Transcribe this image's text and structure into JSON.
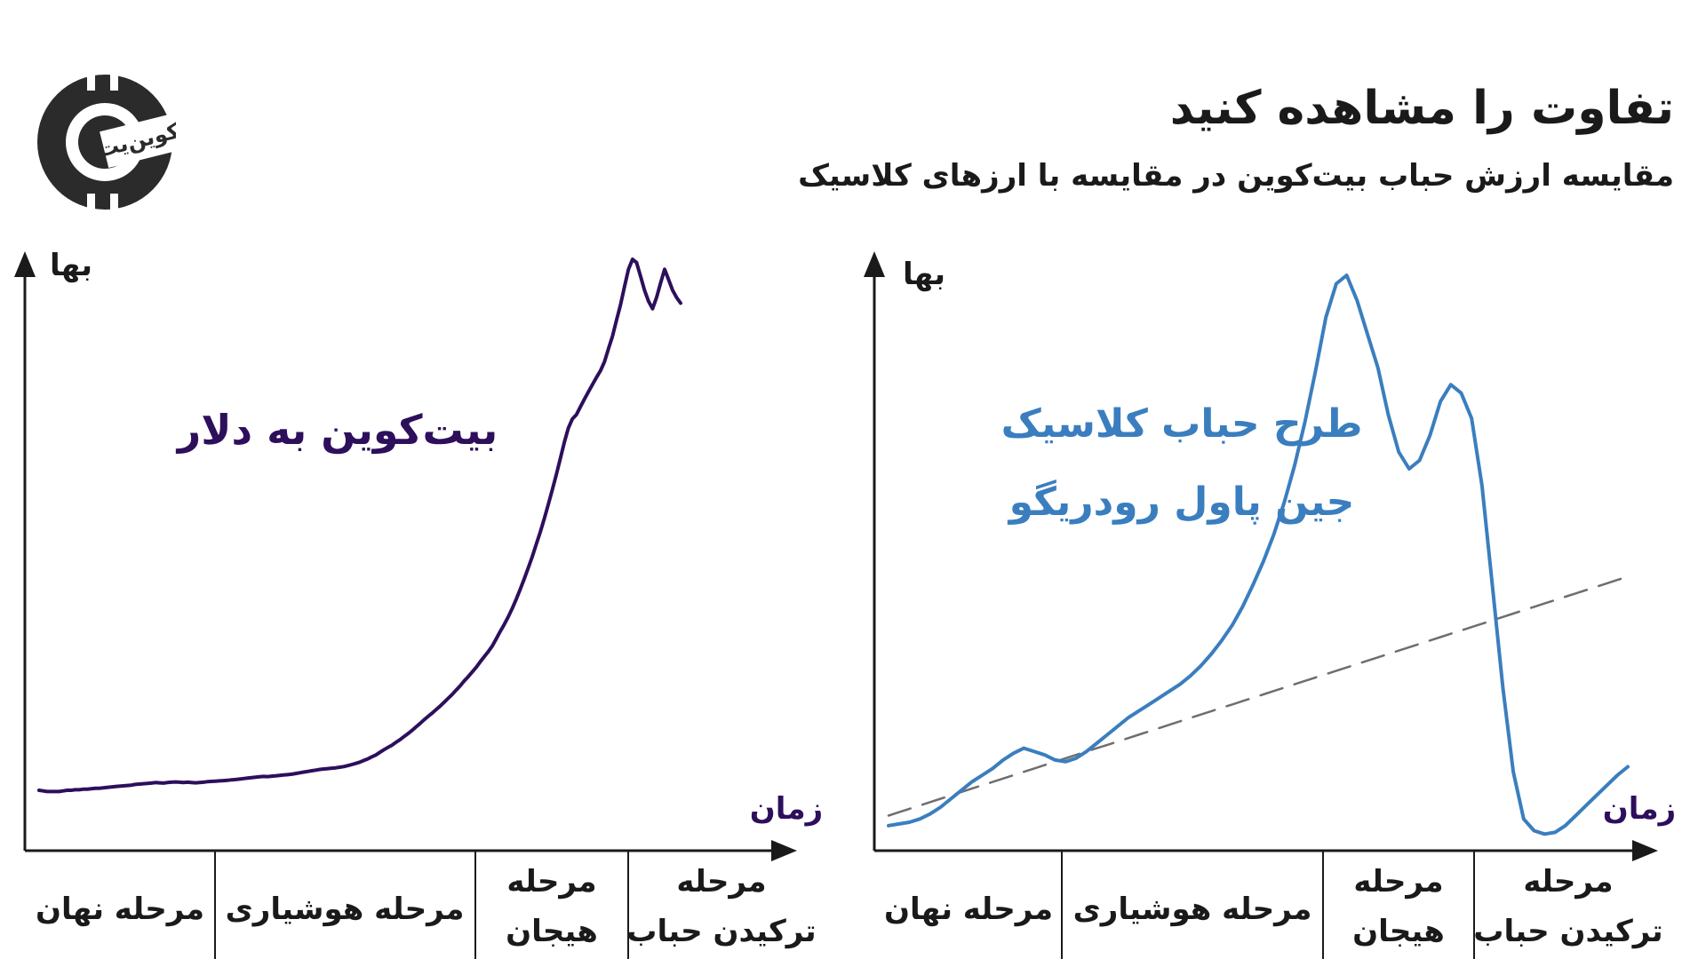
{
  "header": {
    "title": "تفاوت را مشاهده کنید",
    "subtitle": "مقایسه ارزش حباب بیت‌کوین در مقایسه با ارزهای کلاسیک"
  },
  "logo": {
    "text": "کوین‌یت",
    "icon": "coin-logo-icon"
  },
  "colors": {
    "bitcoin_line": "#2d0f5c",
    "classic_line": "#3a7ebf",
    "trend_dash": "#6e6e6e",
    "axis": "#1a1a1a",
    "text": "#1a1a1a"
  },
  "chart_data": [
    {
      "type": "line",
      "series": [
        {
          "name": "بیت‌کوین به دلار",
          "values": [
            10,
            9,
            8,
            8,
            8,
            8,
            9,
            10,
            10,
            11,
            11,
            12,
            12,
            13,
            14,
            14,
            15,
            16,
            17,
            18,
            19,
            20,
            21,
            22,
            24,
            25,
            26,
            27,
            28,
            30,
            29,
            28,
            30,
            31,
            32,
            31,
            30,
            31,
            30,
            29,
            30,
            31,
            33,
            34,
            35,
            36,
            37,
            38,
            40,
            41,
            43,
            45,
            47,
            49,
            51,
            53,
            55,
            54,
            56,
            58,
            60,
            62,
            64,
            66,
            70,
            74,
            78,
            82,
            86,
            90,
            95,
            98,
            100,
            103,
            106,
            110,
            115,
            122,
            130,
            140,
            150,
            165,
            180,
            200,
            220,
            250,
            280,
            310,
            340,
            380,
            420,
            470,
            520,
            580,
            650,
            720,
            800,
            880,
            960,
            1050,
            1150,
            1260,
            1380,
            1500,
            1650,
            1800,
            1980,
            2150,
            2350,
            2550,
            2800,
            3050,
            3300,
            3600,
            4000,
            4450,
            4900,
            5400,
            6000,
            6700,
            7500,
            8400,
            9400,
            10500,
            11800,
            13200,
            14800,
            16600,
            18600,
            20800,
            23300,
            26000,
            28500,
            30200,
            31000,
            32500,
            34000,
            35500,
            37000,
            38500,
            40000,
            42000,
            45000,
            48000,
            52000,
            56000,
            61000,
            66000,
            69000,
            68000,
            64000,
            60000,
            57000,
            55000,
            58000,
            62000,
            66000,
            63000,
            60000,
            58000,
            56500
          ]
        }
      ],
      "x_axis_label": "زمان",
      "y_axis_label": "بها",
      "phases": [
        "مرحله نهان",
        "مرحله هوشیاری",
        "مرحله\nهیجان",
        "مرحله\nترکیدن حباب"
      ],
      "annotation": "بیت‌کوین به دلار",
      "grid": false,
      "legend": "none"
    },
    {
      "type": "line",
      "series": [
        {
          "name": "طرح حباب کلاسیک جین پاول رودریگو",
          "values": [
            8,
            9,
            10,
            12,
            15,
            19,
            24,
            29,
            34,
            38,
            42,
            47,
            51,
            54,
            52,
            50,
            47,
            46,
            48,
            52,
            57,
            62,
            67,
            72,
            76,
            80,
            84,
            88,
            92,
            97,
            103,
            110,
            118,
            127,
            138,
            151,
            165,
            181,
            200,
            222,
            248,
            278,
            310,
            330,
            335,
            320,
            300,
            280,
            252,
            230,
            220,
            225,
            240,
            260,
            270,
            265,
            250,
            210,
            150,
            90,
            40,
            12,
            5,
            3,
            4,
            8,
            14,
            20,
            26,
            32,
            38,
            43
          ]
        },
        {
          "name": "trend",
          "values": [
            14,
            16,
            18,
            20,
            22,
            24,
            26,
            28,
            30,
            32,
            34,
            36,
            38,
            40,
            42,
            44,
            46,
            48,
            50,
            52,
            54,
            56,
            58,
            60,
            62,
            64,
            66,
            68,
            70,
            72,
            74,
            76,
            78,
            80,
            82,
            84,
            86,
            88,
            90,
            92,
            94,
            96,
            98,
            100,
            102,
            104,
            106,
            108,
            110,
            112,
            114,
            116,
            118,
            120,
            122,
            124,
            126,
            128,
            130,
            132,
            134,
            136,
            138,
            140,
            142,
            144,
            146,
            148,
            150,
            152,
            154,
            156
          ]
        }
      ],
      "x_axis_label": "زمان",
      "y_axis_label": "بها",
      "phases": [
        "مرحله نهان",
        "مرحله هوشیاری",
        "مرحله\nهیجان",
        "مرحله\nترکیدن حباب"
      ],
      "annotation_lines": [
        "طرح حباب کلاسیک",
        "جین پاول رودریگو"
      ],
      "grid": false,
      "legend": "none"
    }
  ]
}
